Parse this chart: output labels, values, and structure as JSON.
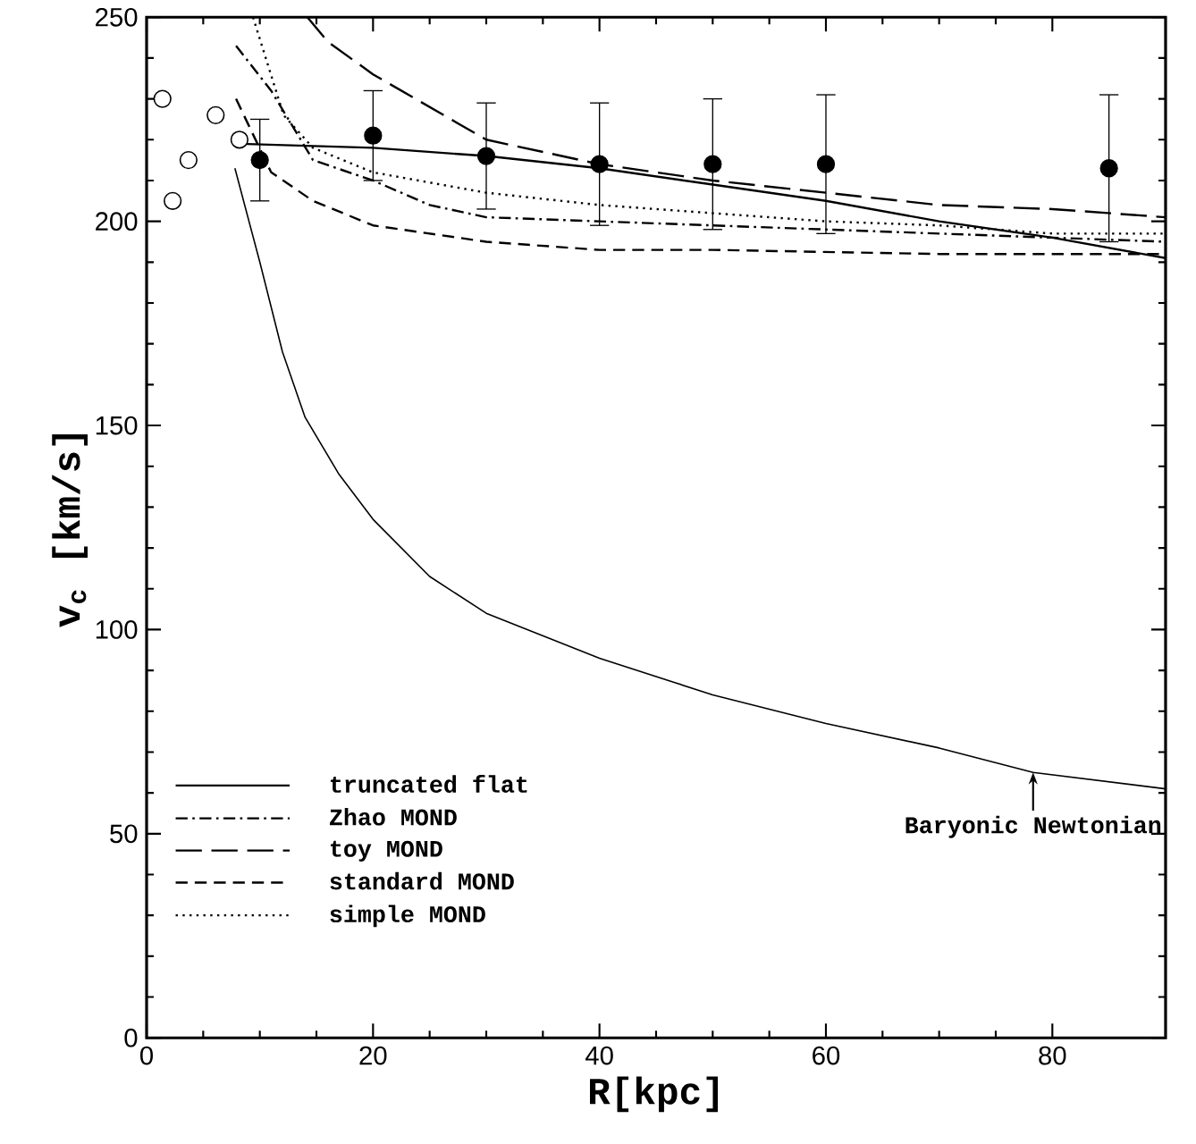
{
  "chart_data": {
    "type": "line",
    "xlabel": "R[kpc]",
    "ylabel": "v$_{c}$ [km/s]",
    "xlim": [
      0,
      90
    ],
    "ylim": [
      0,
      250
    ],
    "xticks": [
      0,
      20,
      40,
      60,
      80
    ],
    "yticks": [
      0,
      50,
      100,
      150,
      200,
      250
    ],
    "legend": "bottom left",
    "grid": false,
    "annotations": [
      {
        "text": "Baryonic Newtonian",
        "x": 78.3,
        "y": 65
      }
    ],
    "series": [
      {
        "name": "truncated flat",
        "color": "#000000",
        "line_style": "solid",
        "x": [
          8.2,
          20,
          30,
          40,
          50,
          60,
          70,
          80,
          90
        ],
        "values": [
          219,
          218,
          216,
          213,
          209,
          205,
          200,
          196,
          191
        ]
      },
      {
        "name": "Zhao MOND",
        "color": "#000000",
        "line_style": "dashdot",
        "x": [
          7.9,
          11,
          14.7,
          20,
          25,
          30,
          40,
          50,
          60,
          80,
          90
        ],
        "values": [
          243,
          232,
          215,
          210,
          204,
          201,
          200,
          199,
          198,
          196,
          195
        ]
      },
      {
        "name": "toy MOND",
        "color": "#000000",
        "line_style": "longdash",
        "x": [
          14.2,
          16,
          20,
          30,
          40,
          50,
          60,
          70,
          80,
          90
        ],
        "values": [
          250,
          244,
          236,
          220,
          214,
          210,
          207,
          204,
          203,
          201
        ]
      },
      {
        "name": "standard MOND",
        "color": "#000000",
        "line_style": "dashed",
        "x": [
          7.9,
          11,
          14.7,
          20,
          30,
          40,
          50,
          70,
          90
        ],
        "values": [
          230,
          212,
          205,
          199,
          195,
          193,
          193,
          192,
          192
        ]
      },
      {
        "name": "simple MOND",
        "color": "#000000",
        "line_style": "dotted",
        "x": [
          9.4,
          12.1,
          14.7,
          20,
          30,
          40,
          50,
          60,
          70,
          80,
          90
        ],
        "values": [
          250,
          226,
          218,
          212,
          207,
          204,
          202,
          200,
          199,
          197,
          197
        ]
      },
      {
        "color": "#000000",
        "line_style": "solid",
        "x": [
          7.8,
          10,
          12,
          14,
          17,
          20,
          25,
          30,
          40,
          50,
          60,
          70,
          78.3,
          90
        ],
        "values": [
          213,
          190,
          168,
          152,
          138,
          127,
          113,
          104,
          93,
          84,
          77,
          71,
          65,
          61
        ]
      },
      {
        "type": "scatter",
        "marker": "circle",
        "color": "#000000",
        "x": [
          10,
          20,
          30,
          40,
          50,
          60,
          85
        ],
        "values": [
          215,
          221,
          216,
          214,
          214,
          214,
          213
        ],
        "errors": [
          [
            205,
            225
          ],
          [
            210,
            232
          ],
          [
            203,
            229
          ],
          [
            199,
            229
          ],
          [
            198,
            230
          ],
          [
            197,
            231
          ],
          [
            195,
            231
          ]
        ]
      },
      {
        "type": "scatter",
        "marker": "circle",
        "color": "#ffffff",
        "x": [
          1.4,
          2.3,
          3.7,
          6.1,
          8.2
        ],
        "values": [
          230,
          205,
          215,
          226,
          220
        ]
      }
    ]
  }
}
